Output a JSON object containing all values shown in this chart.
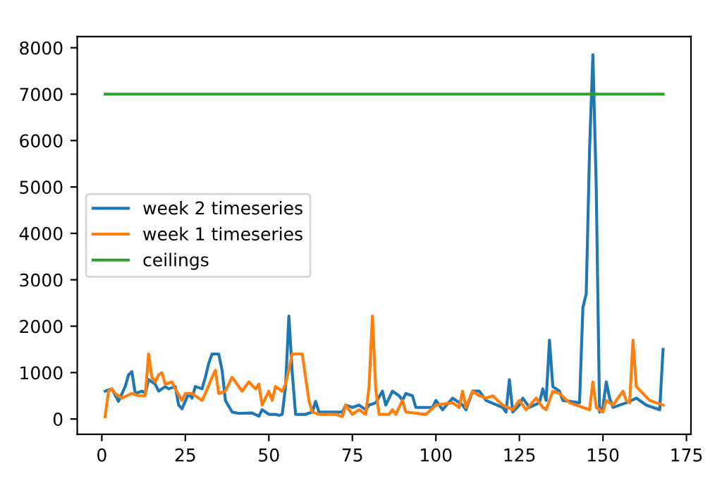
{
  "chart_data": {
    "type": "line",
    "xlim": [
      -7.35,
      176.35
    ],
    "ylim": [
      -330,
      8240
    ],
    "xticks": [
      0,
      25,
      50,
      75,
      100,
      125,
      150,
      175
    ],
    "yticks": [
      0,
      1000,
      2000,
      3000,
      4000,
      5000,
      6000,
      7000,
      8000
    ],
    "grid": false,
    "legend": "left",
    "line_style": "solid",
    "marker": "none",
    "series": [
      {
        "name": "week 2 timeseries",
        "color": "#1f77b4",
        "x": [
          1,
          3,
          5,
          7,
          8,
          9,
          10,
          12,
          13,
          14,
          16,
          17,
          19,
          20,
          22,
          23,
          24,
          26,
          27,
          28,
          30,
          31,
          32,
          33,
          35,
          36,
          37,
          39,
          41,
          45,
          47,
          48,
          50,
          52,
          53,
          54,
          55,
          56,
          57,
          58,
          61,
          63,
          64,
          65,
          70,
          72,
          73,
          75,
          77,
          79,
          80,
          82,
          84,
          85,
          87,
          89,
          90,
          91,
          93,
          94,
          99,
          100,
          102,
          105,
          108,
          109,
          111,
          113,
          115,
          120,
          121,
          122,
          123,
          125,
          126,
          128,
          131,
          132,
          133,
          134,
          135,
          137,
          138,
          143,
          144,
          145,
          146,
          147,
          148,
          149,
          150,
          151,
          152,
          153,
          157,
          160,
          163,
          167,
          168
        ],
        "values": [
          600,
          650,
          380,
          700,
          950,
          1020,
          550,
          600,
          560,
          850,
          750,
          600,
          700,
          650,
          700,
          300,
          220,
          550,
          450,
          700,
          650,
          900,
          1200,
          1400,
          1400,
          1050,
          400,
          150,
          120,
          130,
          60,
          200,
          100,
          100,
          80,
          100,
          700,
          2220,
          1000,
          100,
          100,
          150,
          380,
          150,
          150,
          150,
          300,
          250,
          300,
          200,
          300,
          350,
          600,
          300,
          600,
          500,
          400,
          550,
          500,
          250,
          250,
          400,
          200,
          450,
          300,
          200,
          600,
          600,
          400,
          250,
          150,
          850,
          150,
          300,
          450,
          250,
          350,
          650,
          400,
          1700,
          700,
          600,
          400,
          350,
          2400,
          2700,
          5800,
          7850,
          5000,
          150,
          250,
          800,
          450,
          250,
          350,
          450,
          300,
          200,
          1500
        ]
      },
      {
        "name": "week 1 timeseries",
        "color": "#ff7f0e",
        "x": [
          1,
          2,
          3,
          4,
          6,
          9,
          11,
          13,
          14,
          15,
          16,
          17,
          18,
          19,
          21,
          22,
          24,
          25,
          27,
          28,
          30,
          31,
          33,
          34,
          35,
          37,
          39,
          40,
          42,
          44,
          46,
          47,
          48,
          50,
          51,
          52,
          54,
          55,
          57,
          60,
          62,
          63,
          65,
          70,
          72,
          73,
          75,
          77,
          79,
          80,
          81,
          82,
          83,
          86,
          87,
          88,
          90,
          91,
          97,
          100,
          105,
          107,
          108,
          109,
          111,
          113,
          115,
          117,
          120,
          123,
          125,
          127,
          130,
          131,
          132,
          133,
          135,
          137,
          140,
          144,
          146,
          147,
          148,
          150,
          151,
          153,
          156,
          157,
          158,
          159,
          160,
          162,
          164,
          166,
          168
        ],
        "values": [
          50,
          600,
          650,
          550,
          450,
          550,
          500,
          500,
          1400,
          900,
          800,
          950,
          1000,
          750,
          800,
          650,
          400,
          550,
          550,
          500,
          400,
          550,
          900,
          1050,
          550,
          600,
          900,
          800,
          600,
          800,
          650,
          750,
          300,
          600,
          400,
          700,
          600,
          750,
          1400,
          1400,
          400,
          150,
          100,
          100,
          50,
          300,
          100,
          200,
          100,
          700,
          2220,
          650,
          100,
          100,
          200,
          100,
          400,
          150,
          100,
          300,
          350,
          250,
          600,
          250,
          600,
          500,
          450,
          500,
          300,
          200,
          400,
          200,
          450,
          350,
          250,
          200,
          600,
          550,
          350,
          250,
          200,
          800,
          250,
          150,
          400,
          300,
          600,
          400,
          350,
          1700,
          700,
          550,
          400,
          350,
          300
        ]
      },
      {
        "name": "ceilings",
        "color": "#2ca02c",
        "x": [
          1,
          168
        ],
        "values": [
          7000,
          7000
        ]
      }
    ]
  }
}
